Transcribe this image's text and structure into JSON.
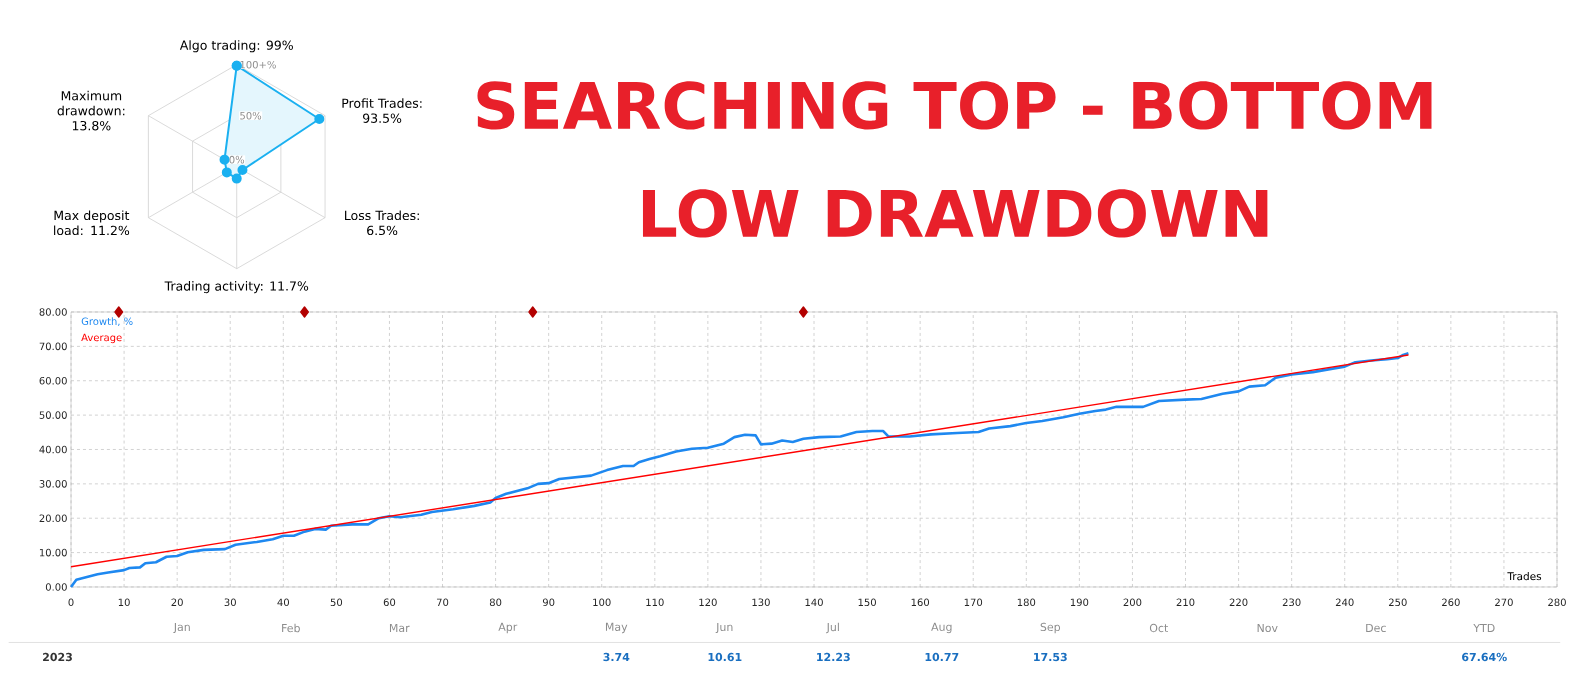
{
  "chart_data": [
    {
      "type": "radar",
      "categories": [
        "Algo trading: 99%",
        "Profit Trades: 93.5%",
        "Loss Trades: 6.5%",
        "Trading activity: 11.7%",
        "Max deposit load: 11.2%",
        "Maximum drawdown: 13.8%"
      ],
      "series": [
        {
          "color": "#1ab0f0",
          "values": [
            99,
            93.5,
            6.5,
            11.7,
            11.2,
            13.8
          ]
        }
      ],
      "ylim": [
        0,
        100
      ],
      "yticks": [
        {
          "value": 0,
          "label": "0%"
        },
        {
          "value": 50,
          "label": "50%"
        },
        {
          "value": 100,
          "label": "100+%"
        }
      ],
      "marker": "circle"
    },
    {
      "type": "line",
      "title": "SEARCHING TOP - BOTTOM LOW DRAWDOWN",
      "xlabel": "Trades",
      "series": [
        {
          "name": "Growth, %",
          "color": "#1e88f0",
          "x": [
            0,
            1,
            5,
            7,
            10,
            11,
            13,
            14,
            16,
            18,
            20,
            22,
            25,
            29,
            31,
            35,
            38,
            40,
            42,
            44,
            46,
            48,
            49,
            53,
            56,
            58,
            60,
            62,
            66,
            68,
            72,
            76,
            79,
            80,
            82,
            86,
            88,
            90,
            92,
            95,
            98,
            101,
            104,
            106,
            107,
            109,
            111,
            114,
            117,
            120,
            123,
            125,
            127,
            129,
            130,
            132,
            134,
            136,
            138,
            141,
            145,
            148,
            151,
            153,
            154,
            158,
            162,
            167,
            171,
            173,
            177,
            180,
            183,
            187,
            190,
            193,
            195,
            197,
            202,
            205,
            210,
            213,
            217,
            220,
            222,
            225,
            227,
            230,
            234,
            238,
            240,
            242,
            245,
            248,
            250,
            251,
            252
          ],
          "values": [
            0,
            2.1,
            3.7,
            4.2,
            4.9,
            5.5,
            5.7,
            6.9,
            7.2,
            8.8,
            9.0,
            10.1,
            10.8,
            11.0,
            12.3,
            13.1,
            13.9,
            14.9,
            14.9,
            16.1,
            16.9,
            16.7,
            17.8,
            18.2,
            18.2,
            20.0,
            20.6,
            20.3,
            21.0,
            21.8,
            22.6,
            23.6,
            24.6,
            25.9,
            27.1,
            28.7,
            30.0,
            30.2,
            31.4,
            31.9,
            32.4,
            34.0,
            35.2,
            35.2,
            36.3,
            37.2,
            38.0,
            39.4,
            40.2,
            40.5,
            41.7,
            43.6,
            44.3,
            44.1,
            41.5,
            41.7,
            42.6,
            42.2,
            43.1,
            43.6,
            43.8,
            45.1,
            45.4,
            45.4,
            43.8,
            43.8,
            44.4,
            44.8,
            45.1,
            46.1,
            46.8,
            47.7,
            48.3,
            49.4,
            50.4,
            51.2,
            51.6,
            52.4,
            52.4,
            54.1,
            54.5,
            54.7,
            56.2,
            56.9,
            58.3,
            58.7,
            60.9,
            61.8,
            62.5,
            63.6,
            64.1,
            65.4,
            65.9,
            66.3,
            66.6,
            67.5,
            68.0
          ]
        },
        {
          "name": "Average",
          "color": "#ff0000",
          "x": [
            0,
            252
          ],
          "values": [
            5.9,
            67.5
          ]
        },
        {
          "type": "scatter",
          "color": "#b30000",
          "marker": "diamond",
          "x": [
            9,
            44,
            87,
            138
          ],
          "values": [
            80,
            80,
            80,
            80
          ]
        }
      ],
      "xlim": [
        0,
        280
      ],
      "xticks": [
        0,
        10,
        20,
        30,
        40,
        50,
        60,
        70,
        80,
        90,
        100,
        110,
        120,
        130,
        140,
        150,
        160,
        170,
        180,
        190,
        200,
        210,
        220,
        230,
        240,
        250,
        260,
        270,
        280
      ],
      "ylim": [
        0,
        80
      ],
      "yticks": [
        {
          "value": 0,
          "label": "0.00"
        },
        {
          "value": 10,
          "label": "10.00"
        },
        {
          "value": 20,
          "label": "20.00"
        },
        {
          "value": 30,
          "label": "30.00"
        },
        {
          "value": 40,
          "label": "40.00"
        },
        {
          "value": 50,
          "label": "50.00"
        },
        {
          "value": 60,
          "label": "60.00"
        },
        {
          "value": 70,
          "label": "70.00"
        },
        {
          "value": 80,
          "label": "80.00"
        }
      ],
      "grid": true,
      "legend": "top left"
    },
    {
      "type": "other",
      "ylabel": "2023",
      "categories": [
        "Jan",
        "Feb",
        "Mar",
        "Apr",
        "May",
        "Jun",
        "Jul",
        "Aug",
        "Sep",
        "Oct",
        "Nov",
        "Dec",
        "YTD"
      ],
      "value_labels": [
        null,
        null,
        null,
        null,
        "3.74",
        "10.61",
        "12.23",
        "10.77",
        "17.53",
        null,
        null,
        null,
        "67.64%"
      ]
    }
  ]
}
